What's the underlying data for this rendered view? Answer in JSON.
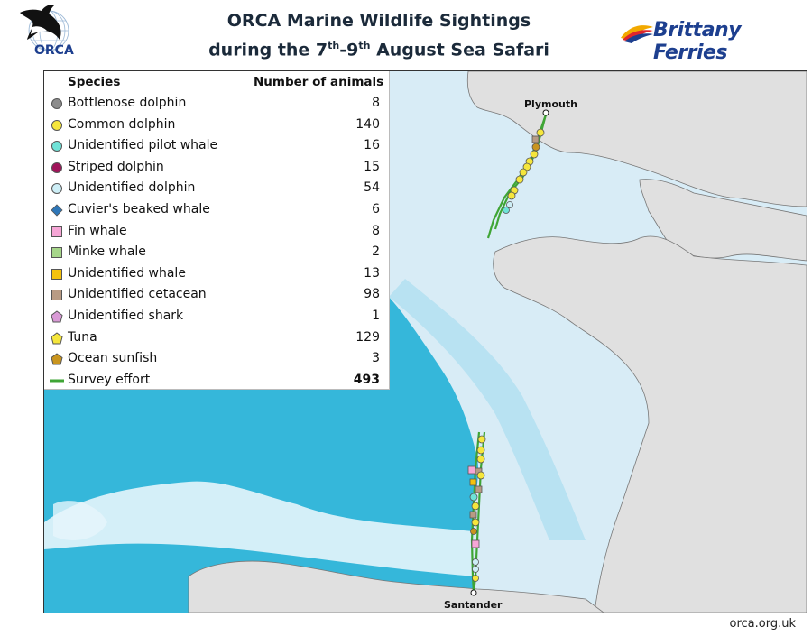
{
  "title": {
    "line1": "ORCA Marine Wildlife Sightings",
    "line2_pre": "during the 7",
    "line2_sup1": "th",
    "line2_mid": "-9",
    "line2_sup2": "th",
    "line2_post": " August Sea Safari"
  },
  "logos": {
    "orca_text": "ORCA",
    "brittany_text": "Brittany Ferries"
  },
  "legend": {
    "species_header": "Species",
    "count_header": "Number of animals",
    "items": [
      {
        "label": "Bottlenose dolphin",
        "count": "8",
        "shape": "circle",
        "color": "#8c8c8c"
      },
      {
        "label": "Common dolphin",
        "count": "140",
        "shape": "circle",
        "color": "#f5e63c"
      },
      {
        "label": "Unidentified pilot whale",
        "count": "16",
        "shape": "circle",
        "color": "#6fe3d8"
      },
      {
        "label": "Striped dolphin",
        "count": "15",
        "shape": "circle",
        "color": "#a0145a"
      },
      {
        "label": "Unidentified dolphin",
        "count": "54",
        "shape": "circle",
        "color": "#cdeef6"
      },
      {
        "label": "Cuvier's beaked whale",
        "count": "6",
        "shape": "diamond",
        "color": "#2f77b8"
      },
      {
        "label": "Fin whale",
        "count": "8",
        "shape": "square",
        "color": "#f6a6d6"
      },
      {
        "label": "Minke whale",
        "count": "2",
        "shape": "square",
        "color": "#a6d68a"
      },
      {
        "label": "Unidentified whale",
        "count": "13",
        "shape": "square",
        "color": "#f4c20d"
      },
      {
        "label": "Unidentified cetacean",
        "count": "98",
        "shape": "square",
        "color": "#b89b84"
      },
      {
        "label": "Unidentified shark",
        "count": "1",
        "shape": "pentagon",
        "color": "#d99ad6"
      },
      {
        "label": "Tuna",
        "count": "129",
        "shape": "pentagon",
        "color": "#f5e63c"
      },
      {
        "label": "Ocean sunfish",
        "count": "3",
        "shape": "pentagon",
        "color": "#c9951e"
      },
      {
        "label": "Survey effort",
        "count": "493",
        "shape": "line",
        "color": "#3fa535",
        "bold": true
      }
    ]
  },
  "ports": {
    "plymouth": "Plymouth",
    "santander": "Santander"
  },
  "footer": {
    "url": "orca.org.uk"
  },
  "colors": {
    "land": "#e0e0e0",
    "shelf_sea": "#d8ecf6",
    "deep_sea": "#35b7da",
    "track": "#3fa535",
    "title_text": "#1b2a3a",
    "brand_blue": "#1d3f8f"
  }
}
